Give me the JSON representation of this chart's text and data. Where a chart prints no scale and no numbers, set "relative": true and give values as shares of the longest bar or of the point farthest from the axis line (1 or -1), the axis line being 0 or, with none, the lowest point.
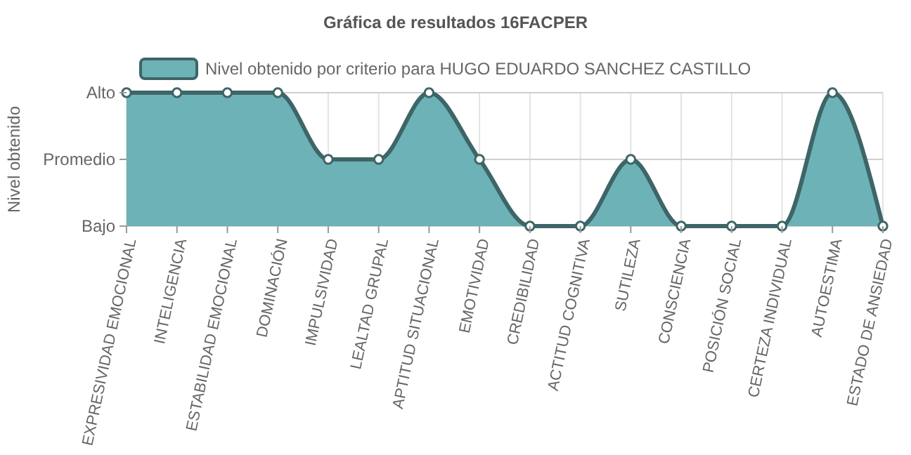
{
  "chart_data": {
    "type": "area",
    "title": "Gráfica de resultados 16FACPER",
    "ylabel": "Nivel obtenido",
    "categories": [
      "EXPRESIVIDAD EMOCIONAL",
      "INTELIGENCIA",
      "ESTABILIDAD EMOCIONAL",
      "DOMINACIÓN",
      "IMPULSIVIDAD",
      "LEALTAD GRUPAL",
      "APTITUD SITUACIONAL",
      "EMOTIVIDAD",
      "CREDIBILIDAD",
      "ACTITUD COGNITIVA",
      "SUTILEZA",
      "CONSCIENCIA",
      "POSICIÓN SOCIAL",
      "CERTEZA INDIVIDUAL",
      "AUTOESTIMA",
      "ESTADO DE ANSIEDAD"
    ],
    "series": [
      {
        "name": "Nivel obtenido por criterio para HUGO EDUARDO SANCHEZ CASTILLO",
        "color": "#6db2b7",
        "values": [
          1,
          1,
          1,
          1,
          0.5,
          0.5,
          1,
          0.5,
          0,
          0,
          0.5,
          0,
          0,
          0,
          1,
          0
        ]
      }
    ],
    "relative": true,
    "ref_lines": [
      {
        "axis": "y",
        "value": 0,
        "label": "Bajo"
      },
      {
        "axis": "y",
        "value": 0.5,
        "label": "Promedio"
      },
      {
        "axis": "y",
        "value": 1,
        "label": "Alto"
      }
    ],
    "grid": "x",
    "legend": "top",
    "marker": "circle",
    "line_style": "solid"
  }
}
